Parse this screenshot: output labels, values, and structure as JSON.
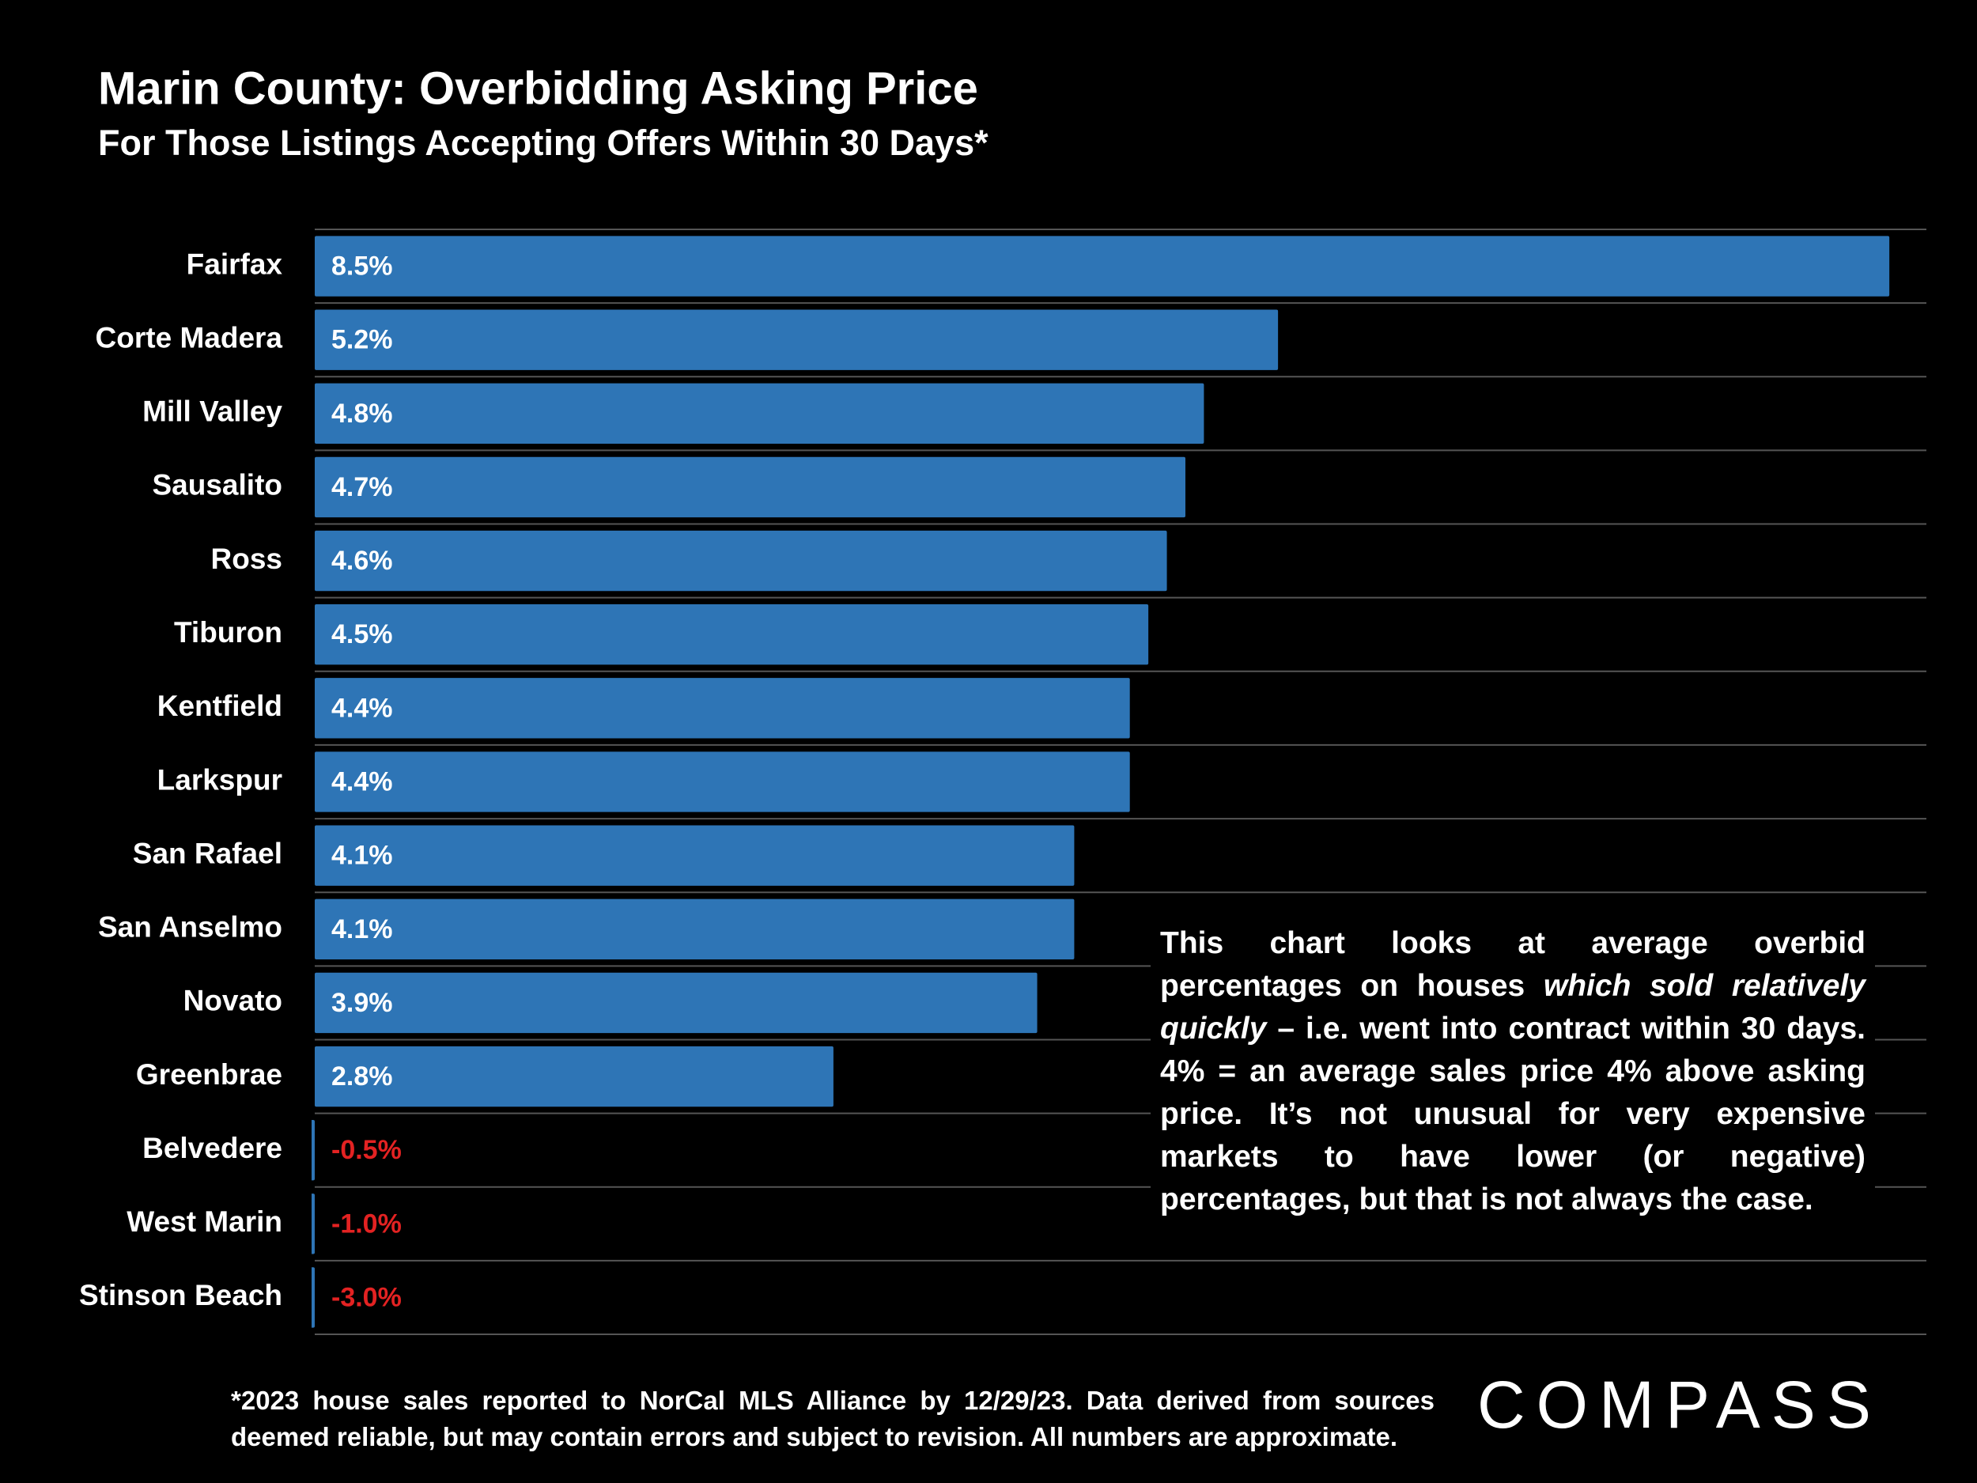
{
  "chart_data": {
    "type": "bar",
    "orientation": "horizontal",
    "title": "Marin County: Overbidding Asking Price",
    "subtitle": "For Those Listings Accepting Offers Within 30 Days*",
    "categories": [
      "Fairfax",
      "Corte Madera",
      "Mill Valley",
      "Sausalito",
      "Ross",
      "Tiburon",
      "Kentfield",
      "Larkspur",
      "San Rafael",
      "San Anselmo",
      "Novato",
      "Greenbrae",
      "Belvedere",
      "West Marin",
      "Stinson Beach"
    ],
    "values": [
      8.5,
      5.2,
      4.8,
      4.7,
      4.6,
      4.5,
      4.4,
      4.4,
      4.1,
      4.1,
      3.9,
      2.8,
      -0.5,
      -1.0,
      -3.0
    ],
    "value_labels": [
      "8.5%",
      "5.2%",
      "4.8%",
      "4.7%",
      "4.6%",
      "4.5%",
      "4.4%",
      "4.4%",
      "4.1%",
      "4.1%",
      "3.9%",
      "2.8%",
      "-0.5%",
      "-1.0%",
      "-3.0%"
    ],
    "color": "#2e75b6",
    "xlim": [
      0,
      8.7
    ]
  },
  "annotation": [
    "This chart looks at average overbid percentages on houses ",
    "which sold relatively quickly",
    " – i.e. went into contract within 30 days. 4% = an average sales price 4% above asking price. It’s not unusual for very expensive markets to have lower (or negative) percentages, but that is not always the case."
  ],
  "footnote": "*2023 house sales reported to NorCal MLS Alliance by 12/29/23. Data derived from sources deemed reliable, but may contain errors and subject to revision. All numbers are approximate.",
  "logo": "COMPASS"
}
